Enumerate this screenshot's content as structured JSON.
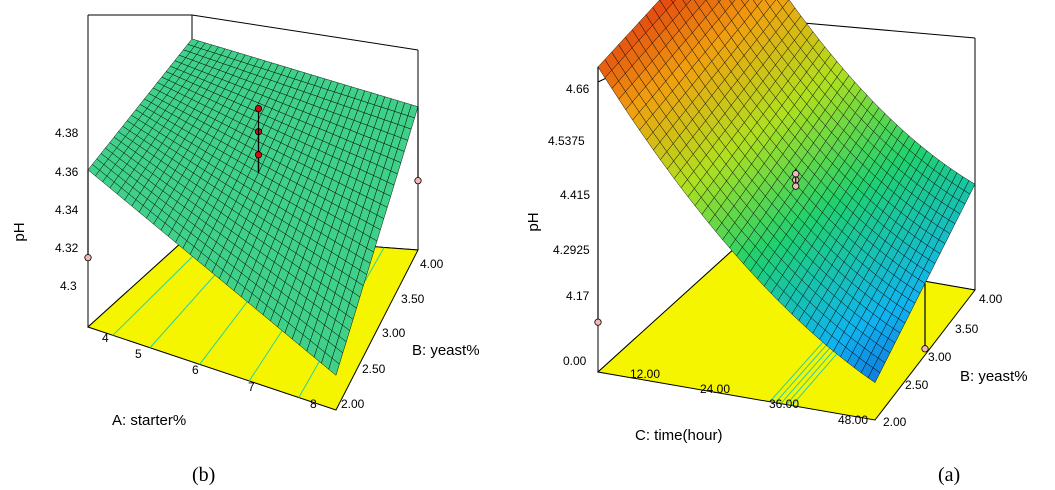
{
  "chart_data": [
    {
      "type": "surface",
      "panel_label": "(b)",
      "zlabel": "pH",
      "xlabel": "A: starter%",
      "ylabel": "B: yeast%",
      "x_ticks": [
        "4",
        "5",
        "6",
        "7",
        "8"
      ],
      "y_ticks": [
        "2.00",
        "2.50",
        "3.00",
        "3.50",
        "4.00"
      ],
      "z_ticks": [
        "4.3",
        "4.32",
        "4.34",
        "4.36",
        "4.38"
      ],
      "xlim": [
        4,
        8
      ],
      "ylim": [
        2.0,
        4.0
      ],
      "zlim": [
        4.29,
        4.38
      ],
      "surface_color": "#3fd08a",
      "floor_color": "#f5f500",
      "surface_corners": {
        "A4_B2": 4.358,
        "A8_B2": 4.305,
        "A4_B4": 4.374,
        "A8_B4": 4.352
      },
      "design_points": [
        {
          "A": 4,
          "B": 2.0,
          "pH": 4.32
        },
        {
          "A": 8,
          "B": 4.0,
          "pH": 4.32
        },
        {
          "A": 6,
          "B": 3.0,
          "pH": 4.365
        },
        {
          "A": 6,
          "B": 3.0,
          "pH": 4.375
        },
        {
          "A": 6,
          "B": 3.0,
          "pH": 4.355
        }
      ]
    },
    {
      "type": "surface",
      "panel_label": "(a)",
      "zlabel": "pH",
      "xlabel": "C: time(hour)",
      "ylabel": "B: yeast%",
      "x_ticks": [
        "0.00",
        "12.00",
        "24.00",
        "36.00",
        "48.00"
      ],
      "y_ticks": [
        "2.00",
        "2.50",
        "3.00",
        "3.50",
        "4.00"
      ],
      "z_ticks": [
        "4.17",
        "4.2925",
        "4.415",
        "4.5375",
        "4.66"
      ],
      "xlim": [
        0,
        48
      ],
      "ylim": [
        2.0,
        4.0
      ],
      "zlim": [
        4.17,
        4.7
      ],
      "colormap": [
        "#1030c8",
        "#10b4f0",
        "#20d070",
        "#b0e020",
        "#f0a010",
        "#e03010"
      ],
      "floor_color": "#f5f500",
      "surface_corners": {
        "C0_B2": 4.66,
        "C48_B2": 4.19,
        "C0_B4": 4.7,
        "C48_B4": 4.3
      },
      "design_points": [
        {
          "C": 0,
          "B": 4.0,
          "pH": 4.68
        },
        {
          "C": 24,
          "B": 3.0,
          "pH": 4.415
        },
        {
          "C": 24,
          "B": 3.0,
          "pH": 4.405
        },
        {
          "C": 24,
          "B": 3.0,
          "pH": 4.425
        },
        {
          "C": 0,
          "B": 2.0,
          "pH": 4.25
        },
        {
          "C": 48,
          "B": 3.0,
          "pH": 4.18
        }
      ]
    }
  ]
}
